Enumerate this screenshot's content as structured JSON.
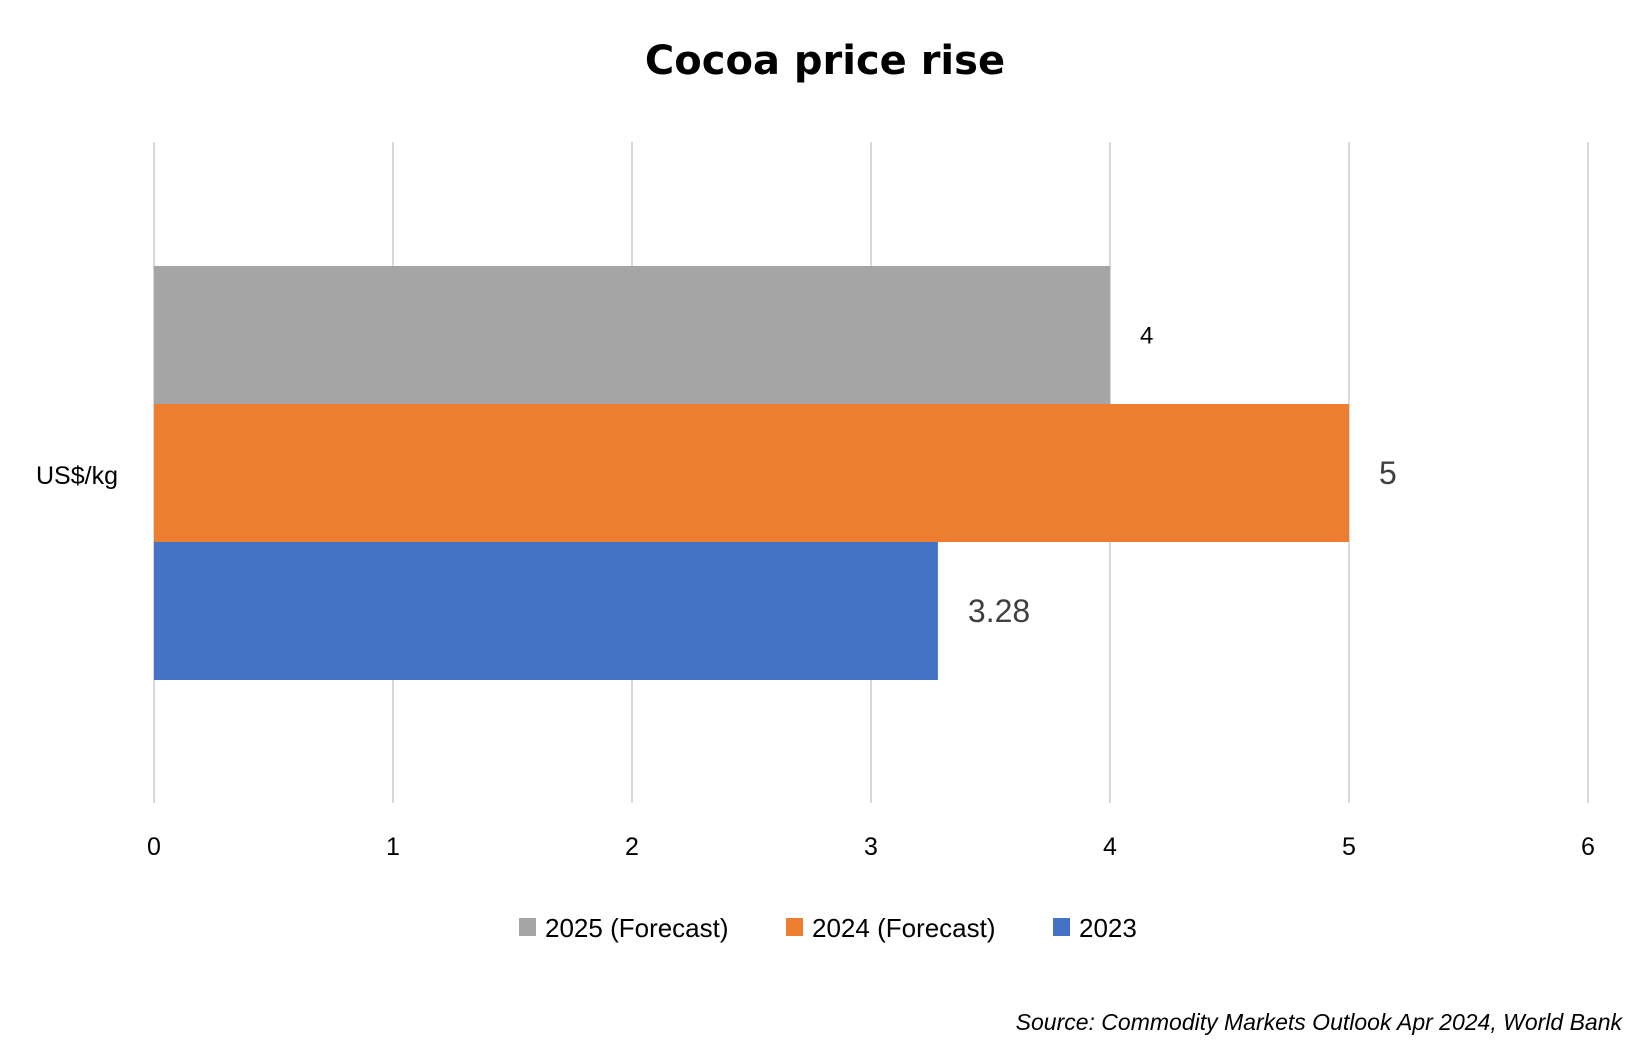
{
  "chart_data": {
    "type": "bar",
    "orientation": "horizontal",
    "title": "Cocoa price rise",
    "categories": [
      "US$/kg"
    ],
    "series": [
      {
        "name": "2025 (Forecast)",
        "values": [
          4
        ],
        "label": "4",
        "color": "#A5A5A5"
      },
      {
        "name": "2024 (Forecast)",
        "values": [
          5
        ],
        "label": "5",
        "color": "#ED7D31"
      },
      {
        "name": "2023",
        "values": [
          3.28
        ],
        "label": "3.28",
        "color": "#4472C4"
      }
    ],
    "xlim": [
      0,
      6
    ],
    "xticks": [
      "0",
      "1",
      "2",
      "3",
      "4",
      "5",
      "6"
    ],
    "grid": true,
    "legend": "bottom",
    "xlabel": "",
    "ylabel": "",
    "source": "Source: Commodity Markets Outlook Apr 2024, World Bank"
  }
}
